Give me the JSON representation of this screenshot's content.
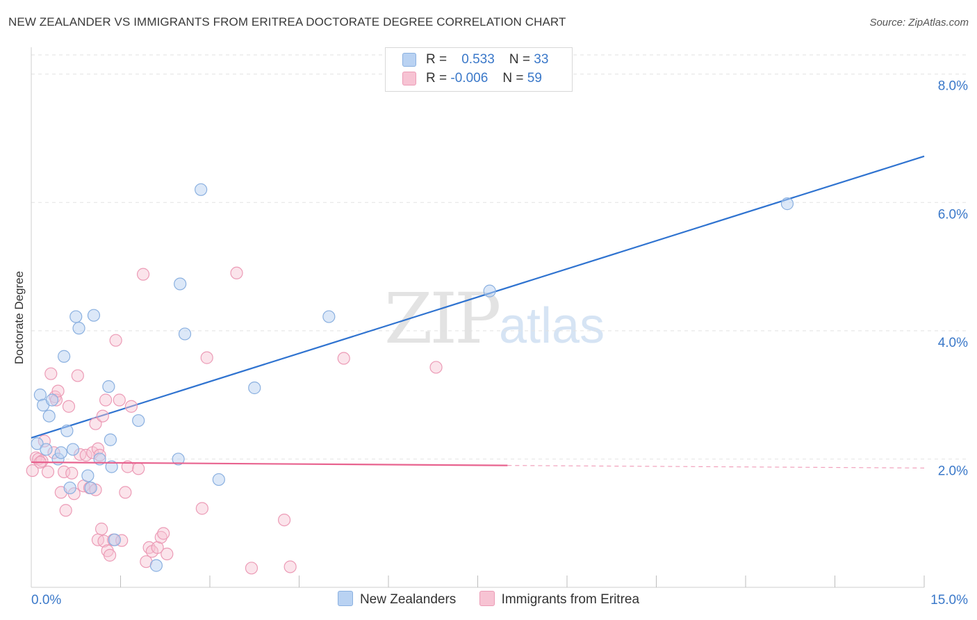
{
  "title": "NEW ZEALANDER VS IMMIGRANTS FROM ERITREA DOCTORATE DEGREE CORRELATION CHART",
  "source": "Source: ZipAtlas.com",
  "watermark": {
    "zip": "ZIP",
    "atlas": "atlas"
  },
  "legend": {
    "r_label": "R =",
    "n_label": "N =",
    "series": [
      {
        "name": "New Zealanders",
        "r": "0.533",
        "n": "33"
      },
      {
        "name": "Immigrants from Eritrea",
        "r": "-0.006",
        "n": "59"
      }
    ]
  },
  "colors": {
    "blue_fill": "#b9d2f2",
    "blue_stroke": "#8ab0e0",
    "blue_line": "#2f73d0",
    "pink_fill": "#f7c3d3",
    "pink_stroke": "#ec9bb6",
    "pink_line": "#e8638f",
    "tick_label": "#3a78c9",
    "grid": "#e2e2e2"
  },
  "chart_data": {
    "type": "scatter",
    "title": "NEW ZEALANDER VS IMMIGRANTS FROM ERITREA DOCTORATE DEGREE CORRELATION CHART",
    "xlabel": "",
    "ylabel": "Doctorate Degree",
    "xlim": [
      0,
      15
    ],
    "ylim": [
      0,
      8.3
    ],
    "x_tick_labels": [
      {
        "value": 0,
        "label": "0.0%"
      },
      {
        "value": 15,
        "label": "15.0%"
      }
    ],
    "x_minor_ticks": [
      1.5,
      3.0,
      4.5,
      6.0,
      7.5,
      9.0,
      10.5,
      12.0,
      13.5,
      15.0
    ],
    "y_ticks": [
      {
        "value": 2,
        "label": "2.0%"
      },
      {
        "value": 4,
        "label": "4.0%"
      },
      {
        "value": 6,
        "label": "6.0%"
      },
      {
        "value": 8,
        "label": "8.0%"
      }
    ],
    "series": [
      {
        "name": "New Zealanders",
        "trend": {
          "x0": 0,
          "y0": 2.33,
          "x1": 15,
          "y1": 6.72
        },
        "points": [
          {
            "x": 0.1,
            "y": 2.24
          },
          {
            "x": 0.15,
            "y": 3.0
          },
          {
            "x": 0.2,
            "y": 2.84
          },
          {
            "x": 0.25,
            "y": 2.15
          },
          {
            "x": 0.3,
            "y": 2.67
          },
          {
            "x": 0.35,
            "y": 2.92
          },
          {
            "x": 0.45,
            "y": 2.0
          },
          {
            "x": 0.5,
            "y": 2.1
          },
          {
            "x": 0.55,
            "y": 3.6
          },
          {
            "x": 0.6,
            "y": 2.44
          },
          {
            "x": 0.65,
            "y": 1.55
          },
          {
            "x": 0.7,
            "y": 2.15
          },
          {
            "x": 0.75,
            "y": 4.22
          },
          {
            "x": 0.8,
            "y": 4.04
          },
          {
            "x": 0.95,
            "y": 1.74
          },
          {
            "x": 1.0,
            "y": 1.55
          },
          {
            "x": 1.05,
            "y": 4.24
          },
          {
            "x": 1.15,
            "y": 2.0
          },
          {
            "x": 1.3,
            "y": 3.13
          },
          {
            "x": 1.33,
            "y": 2.3
          },
          {
            "x": 1.35,
            "y": 1.88
          },
          {
            "x": 1.4,
            "y": 0.74
          },
          {
            "x": 1.8,
            "y": 2.6
          },
          {
            "x": 2.1,
            "y": 0.34
          },
          {
            "x": 2.47,
            "y": 2.0
          },
          {
            "x": 2.5,
            "y": 4.73
          },
          {
            "x": 2.58,
            "y": 3.95
          },
          {
            "x": 2.85,
            "y": 6.2
          },
          {
            "x": 3.15,
            "y": 1.68
          },
          {
            "x": 3.75,
            "y": 3.11
          },
          {
            "x": 5.0,
            "y": 4.22
          },
          {
            "x": 7.7,
            "y": 4.62
          },
          {
            "x": 12.7,
            "y": 5.98
          }
        ]
      },
      {
        "name": "Immigrants from Eritrea",
        "trend": {
          "x0": 0,
          "y0": 1.95,
          "x1": 8.0,
          "y1": 1.9,
          "dash_to_x": 15,
          "dash_to_y": 1.86
        },
        "points": [
          {
            "x": 0.02,
            "y": 1.82
          },
          {
            "x": 0.08,
            "y": 2.02
          },
          {
            "x": 0.12,
            "y": 2.0
          },
          {
            "x": 0.18,
            "y": 1.97
          },
          {
            "x": 0.22,
            "y": 2.28
          },
          {
            "x": 0.28,
            "y": 1.8
          },
          {
            "x": 0.33,
            "y": 3.33
          },
          {
            "x": 0.38,
            "y": 2.1
          },
          {
            "x": 0.4,
            "y": 2.97
          },
          {
            "x": 0.42,
            "y": 2.92
          },
          {
            "x": 0.45,
            "y": 3.06
          },
          {
            "x": 0.5,
            "y": 1.48
          },
          {
            "x": 0.55,
            "y": 1.8
          },
          {
            "x": 0.58,
            "y": 1.2
          },
          {
            "x": 0.63,
            "y": 2.82
          },
          {
            "x": 0.68,
            "y": 1.78
          },
          {
            "x": 0.72,
            "y": 1.46
          },
          {
            "x": 0.78,
            "y": 3.3
          },
          {
            "x": 0.82,
            "y": 2.07
          },
          {
            "x": 0.88,
            "y": 1.58
          },
          {
            "x": 0.92,
            "y": 2.06
          },
          {
            "x": 0.98,
            "y": 1.55
          },
          {
            "x": 1.03,
            "y": 2.1
          },
          {
            "x": 1.08,
            "y": 2.55
          },
          {
            "x": 1.12,
            "y": 2.16
          },
          {
            "x": 1.15,
            "y": 2.06
          },
          {
            "x": 1.2,
            "y": 2.67
          },
          {
            "x": 1.25,
            "y": 2.92
          },
          {
            "x": 1.08,
            "y": 1.52
          },
          {
            "x": 1.12,
            "y": 0.74
          },
          {
            "x": 1.18,
            "y": 0.91
          },
          {
            "x": 1.22,
            "y": 0.72
          },
          {
            "x": 1.28,
            "y": 0.57
          },
          {
            "x": 1.32,
            "y": 0.5
          },
          {
            "x": 1.38,
            "y": 0.74
          },
          {
            "x": 1.42,
            "y": 3.85
          },
          {
            "x": 1.48,
            "y": 2.92
          },
          {
            "x": 1.52,
            "y": 0.73
          },
          {
            "x": 1.58,
            "y": 1.48
          },
          {
            "x": 1.62,
            "y": 1.88
          },
          {
            "x": 1.68,
            "y": 2.82
          },
          {
            "x": 1.8,
            "y": 1.85
          },
          {
            "x": 1.88,
            "y": 4.88
          },
          {
            "x": 1.93,
            "y": 0.4
          },
          {
            "x": 1.98,
            "y": 0.62
          },
          {
            "x": 2.03,
            "y": 0.56
          },
          {
            "x": 2.12,
            "y": 0.62
          },
          {
            "x": 2.18,
            "y": 0.78
          },
          {
            "x": 2.22,
            "y": 0.84
          },
          {
            "x": 2.28,
            "y": 0.52
          },
          {
            "x": 2.87,
            "y": 1.23
          },
          {
            "x": 2.95,
            "y": 3.58
          },
          {
            "x": 3.45,
            "y": 4.9
          },
          {
            "x": 3.7,
            "y": 0.3
          },
          {
            "x": 4.25,
            "y": 1.05
          },
          {
            "x": 4.35,
            "y": 0.32
          },
          {
            "x": 5.25,
            "y": 3.57
          },
          {
            "x": 6.8,
            "y": 3.43
          },
          {
            "x": 0.15,
            "y": 1.95
          }
        ]
      }
    ]
  }
}
